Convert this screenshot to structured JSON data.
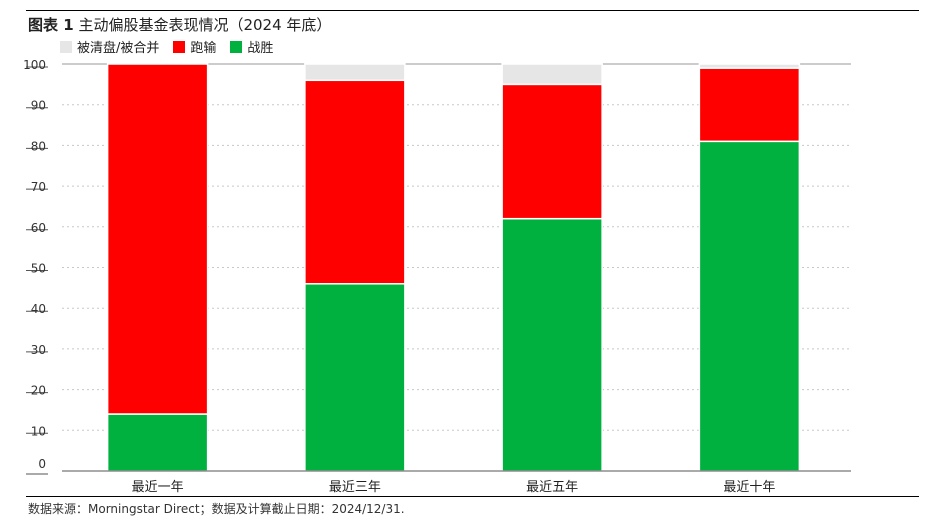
{
  "title": {
    "label": "图表 1",
    "text": "主动偏股基金表现情况（2024 年底）"
  },
  "legend": [
    {
      "label": "被清盘/被合并",
      "color": "#e6e6e6"
    },
    {
      "label": "跑输",
      "color": "#ff0000"
    },
    {
      "label": "战胜",
      "color": "#00b140"
    }
  ],
  "source": "数据来源：Morningstar Direct；数据及计算截止日期：2024/12/31.",
  "chart_data": {
    "type": "bar",
    "stacked": true,
    "categories": [
      "最近一年",
      "最近三年",
      "最近五年",
      "最近十年"
    ],
    "series": [
      {
        "name": "战胜",
        "color": "#00b140",
        "values": [
          14,
          46,
          62,
          81
        ]
      },
      {
        "name": "跑输",
        "color": "#ff0000",
        "values": [
          86,
          50,
          33,
          18
        ]
      },
      {
        "name": "被清盘/被合并",
        "color": "#e6e6e6",
        "values": [
          0,
          4,
          5,
          1
        ]
      }
    ],
    "y_ticks": [
      0,
      10,
      20,
      30,
      40,
      50,
      60,
      70,
      80,
      90,
      100
    ],
    "ylim": [
      0,
      100
    ],
    "grid": true,
    "legend_position": "top-left"
  }
}
